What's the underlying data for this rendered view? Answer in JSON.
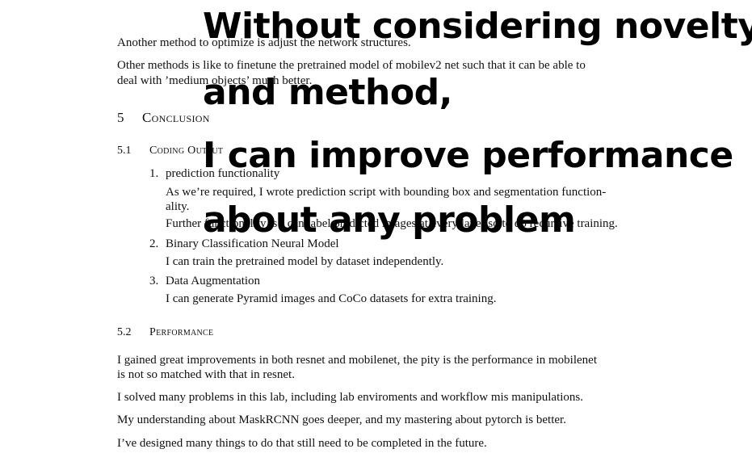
{
  "paragraphs": {
    "p1": "Another method to optimize is adjust the network structures.",
    "p2_line1": "Other methods is like to finetune the pretrained model of mobilev2 net such that it can be able to",
    "p2_line2": "deal with ’medium objects’ much better."
  },
  "section5": {
    "number": "5",
    "title": "Conclusion",
    "sub1": {
      "number": "5.1",
      "title": "Coding Output",
      "items": [
        {
          "num": "1.",
          "title": "prediction functionality",
          "lines": [
            "As we’re required, I wrote prediction script with bounding box and segmentation function-",
            "ality.",
            "Further functionality is I can label predicted images at every layer so to do recursive training."
          ]
        },
        {
          "num": "2.",
          "title": "Binary Classification Neural Model",
          "lines": [
            "I can train the pretrained model by dataset independently."
          ]
        },
        {
          "num": "3.",
          "title": "Data Augmentation",
          "lines": [
            "I can generate Pyramid images and CoCo datasets for extra training."
          ]
        }
      ]
    },
    "sub2": {
      "number": "5.2",
      "title": "Performance",
      "p1_line1": "I gained great improvements in both resnet and mobilenet, the pity is the performance in mobilenet",
      "p1_line2": "is not so matched with that in resnet.",
      "p2": "I solved many problems in this lab, including lab enviroments and workflow mis manipulations.",
      "p3": "My understanding about MaskRCNN goes deeper, and my mastering about pytorch is better.",
      "p4": "I’ve designed many things to do that still need to be completed in the future."
    }
  },
  "overlay": {
    "line1": "Without considering novelty",
    "line2": "and method,",
    "line3": "I can improve performance",
    "line4": "about any problem"
  }
}
